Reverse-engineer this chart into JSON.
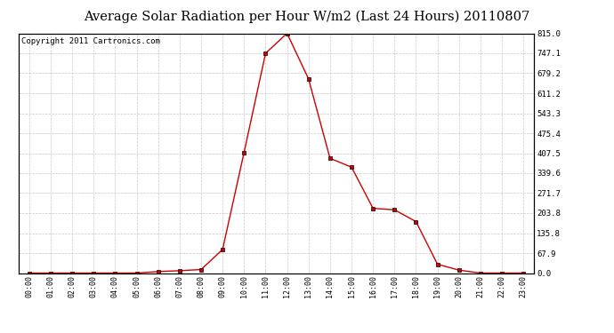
{
  "title": "Average Solar Radiation per Hour W/m2 (Last 24 Hours) 20110807",
  "copyright": "Copyright 2011 Cartronics.com",
  "hours": [
    0,
    1,
    2,
    3,
    4,
    5,
    6,
    7,
    8,
    9,
    10,
    11,
    12,
    13,
    14,
    15,
    16,
    17,
    18,
    19,
    20,
    21,
    22,
    23
  ],
  "hour_labels": [
    "00:00",
    "01:00",
    "02:00",
    "03:00",
    "04:00",
    "05:00",
    "06:00",
    "07:00",
    "08:00",
    "09:00",
    "10:00",
    "11:00",
    "12:00",
    "13:00",
    "14:00",
    "15:00",
    "16:00",
    "17:00",
    "18:00",
    "19:00",
    "20:00",
    "21:00",
    "22:00",
    "23:00"
  ],
  "values": [
    0,
    0,
    0,
    0,
    0,
    0,
    5,
    8,
    12,
    80,
    410,
    747,
    815,
    660,
    390,
    360,
    220,
    215,
    175,
    30,
    10,
    0,
    0,
    0
  ],
  "line_color": "#cc0000",
  "marker": "s",
  "marker_size": 2.5,
  "background_color": "#ffffff",
  "grid_color": "#c8c8c8",
  "ylim": [
    0,
    815
  ],
  "ytick_values": [
    0.0,
    67.9,
    135.8,
    203.8,
    271.7,
    339.6,
    407.5,
    475.4,
    543.3,
    611.2,
    679.2,
    747.1,
    815.0
  ],
  "title_fontsize": 10.5,
  "copyright_fontsize": 6.5
}
